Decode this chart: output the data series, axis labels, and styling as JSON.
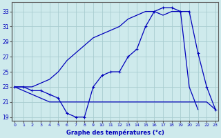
{
  "xlabel": "Graphe des températures (°c)",
  "bg_color": "#ceeaec",
  "grid_color": "#a8cdd0",
  "line_color": "#0000bb",
  "hours": [
    0,
    1,
    2,
    3,
    4,
    5,
    6,
    7,
    8,
    9,
    10,
    11,
    12,
    13,
    14,
    15,
    16,
    17,
    18,
    19,
    20,
    21,
    22,
    23
  ],
  "temp_main": [
    23.0,
    23.0,
    22.5,
    22.5,
    22.0,
    21.5,
    19.5,
    19.0,
    19.0,
    23.0,
    24.5,
    25.0,
    25.0,
    27.0,
    28.0,
    31.0,
    33.0,
    33.5,
    33.5,
    33.0,
    33.0,
    27.5,
    23.0,
    20.0
  ],
  "temp_upper": [
    23.0,
    23.0,
    23.0,
    23.5,
    24.0,
    25.0,
    26.5,
    27.5,
    28.5,
    29.5,
    30.0,
    30.5,
    31.0,
    32.0,
    32.5,
    33.0,
    33.0,
    32.5,
    33.0,
    33.0,
    23.0,
    20.0
  ],
  "temp_upper_hours": [
    0,
    1,
    2,
    3,
    4,
    5,
    6,
    7,
    8,
    9,
    10,
    11,
    12,
    13,
    14,
    15,
    16,
    17,
    18,
    19,
    20,
    21
  ],
  "temp_lower": [
    23.0,
    22.5,
    22.0,
    21.5,
    21.0,
    21.0,
    21.0,
    21.0,
    21.0,
    21.0,
    21.0,
    21.0,
    21.0,
    21.0,
    21.0,
    21.0,
    21.0,
    21.0,
    21.0,
    21.0,
    21.0,
    21.0,
    21.0,
    20.0
  ],
  "ylim_min": 18.5,
  "ylim_max": 34.2,
  "yticks": [
    19,
    21,
    23,
    25,
    27,
    29,
    31,
    33
  ],
  "xlim_min": -0.3,
  "xlim_max": 23.3
}
